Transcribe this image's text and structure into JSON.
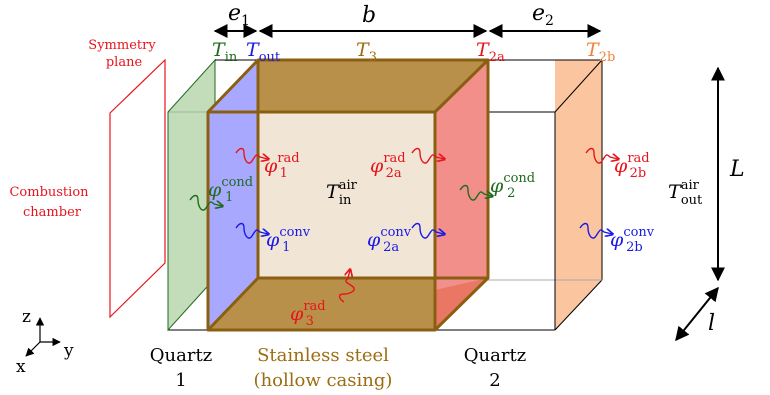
{
  "colors": {
    "black": "#000000",
    "red": "#e8141d",
    "green": "#1f6b1f",
    "blue": "#1a1ae6",
    "orange": "#f0813a",
    "steel": "#8a5f12",
    "steel_text": "#9c6d10",
    "steel_fill": "#b99049",
    "inner_fill": "#f1e6d6",
    "quartz1_fill": "#b8d6ad",
    "blue_fill": "#a8a8ff",
    "red_fill": "#f28f8a",
    "orange_fill": "#fbc69f"
  },
  "dimensions": {
    "e1": {
      "base": "e",
      "sub": "1"
    },
    "b": "b",
    "e2": {
      "base": "e",
      "sub": "2"
    },
    "L": "L",
    "l": "l"
  },
  "temperatures": {
    "t_in": {
      "base": "T",
      "sub": "in"
    },
    "t_out": {
      "base": "T",
      "sub": "out"
    },
    "t3": {
      "base": "T",
      "sub": "3"
    },
    "t2a": {
      "base": "T",
      "sub": "2a"
    },
    "t2b": {
      "base": "T",
      "sub": "2b"
    },
    "t_in_air": {
      "base": "T",
      "sub": "in",
      "sup": "air"
    },
    "t_out_air": {
      "base": "T",
      "sub": "out",
      "sup": "air"
    }
  },
  "fluxes": {
    "phi1_rad": {
      "base": "φ",
      "sub": "1",
      "sup": "rad"
    },
    "phi1_cond": {
      "base": "φ",
      "sub": "1",
      "sup": "cond"
    },
    "phi1_conv": {
      "base": "φ",
      "sub": "1",
      "sup": "conv"
    },
    "phi2a_rad": {
      "base": "φ",
      "sub": "2a",
      "sup": "rad"
    },
    "phi2a_conv": {
      "base": "φ",
      "sub": "2a",
      "sup": "conv"
    },
    "phi2_cond": {
      "base": "φ",
      "sub": "2",
      "sup": "cond"
    },
    "phi2b_rad": {
      "base": "φ",
      "sub": "2b",
      "sup": "rad"
    },
    "phi2b_conv": {
      "base": "φ",
      "sub": "2b",
      "sup": "conv"
    },
    "phi3_rad": {
      "base": "φ",
      "sub": "3",
      "sup": "rad"
    }
  },
  "labels": {
    "symmetry_line1": "Symmetry",
    "symmetry_line2": "plane",
    "combustion_line1": "Combustion",
    "combustion_line2": "chamber",
    "quartz1_line1": "Quartz",
    "quartz1_line2": "1",
    "steel_line1": "Stainless steel",
    "steel_line2": "(hollow casing)",
    "quartz2_line1": "Quartz",
    "quartz2_line2": "2"
  },
  "axes": {
    "z": "z",
    "y": "y",
    "x": "x"
  }
}
